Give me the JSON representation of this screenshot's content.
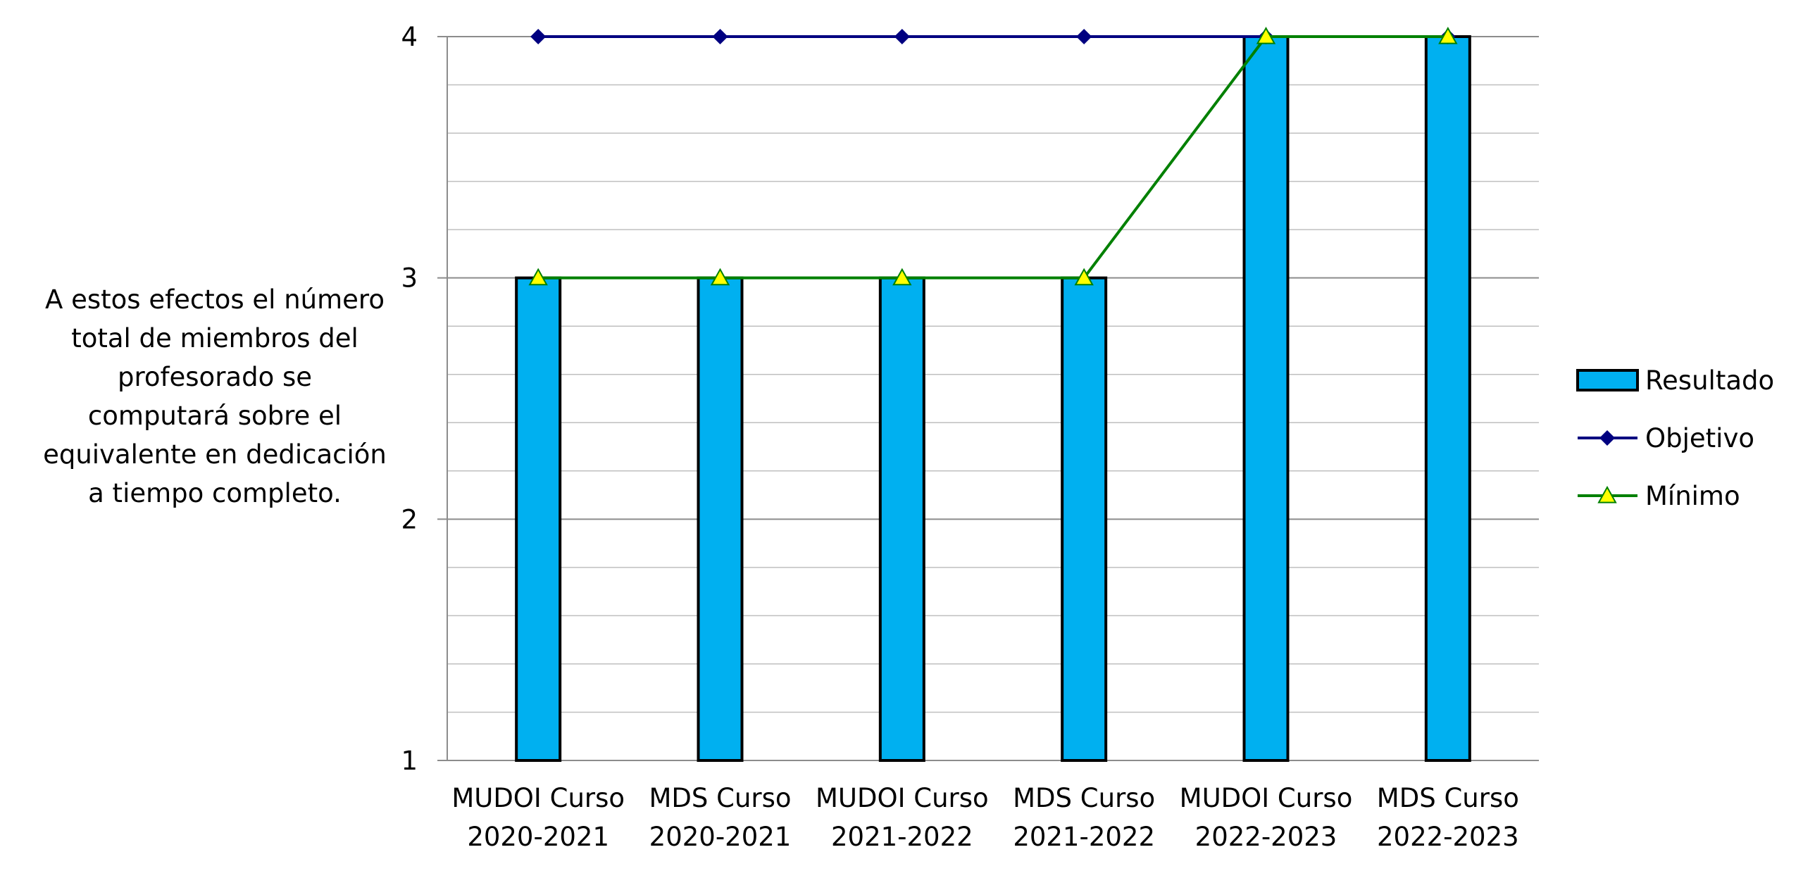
{
  "side_note": {
    "lines": [
      "A estos efectos el número",
      "total de miembros del",
      "profesorado se",
      "computará sobre el",
      "equivalente en dedicación",
      "a tiempo completo."
    ]
  },
  "chart_data": {
    "type": "bar",
    "categories": [
      [
        "MUDOI Curso",
        "2020-2021"
      ],
      [
        "MDS Curso",
        "2020-2021"
      ],
      [
        "MUDOI Curso",
        "2021-2022"
      ],
      [
        "MDS Curso",
        "2021-2022"
      ],
      [
        "MUDOI Curso",
        "2022-2023"
      ],
      [
        "MDS Curso",
        "2022-2023"
      ]
    ],
    "series": [
      {
        "name": "Resultado",
        "kind": "bar",
        "values": [
          3,
          3,
          3,
          3,
          4,
          4
        ],
        "color": "#00B0F0",
        "stroke": "#000000",
        "marker": "none"
      },
      {
        "name": "Objetivo",
        "kind": "line",
        "values": [
          4,
          4,
          4,
          4,
          4,
          4
        ],
        "color": "#000080",
        "marker": "diamond"
      },
      {
        "name": "Mínimo",
        "kind": "line",
        "values": [
          3,
          3,
          3,
          3,
          4,
          4
        ],
        "color": "#008000",
        "marker": "triangle",
        "marker_fill": "#FFFF00"
      }
    ],
    "ylim": [
      1,
      4
    ],
    "yticks": [
      1,
      2,
      3,
      4
    ],
    "minor_gridlines_per_unit": 5,
    "grid": true,
    "legend_position": "right",
    "title": "",
    "xlabel": "",
    "ylabel": ""
  }
}
